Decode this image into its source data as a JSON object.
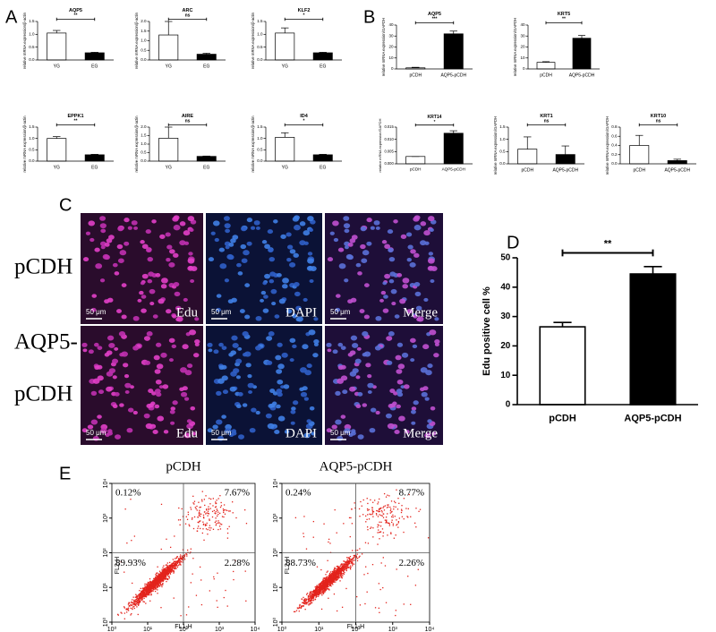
{
  "panel_labels": [
    "A",
    "B",
    "C",
    "D",
    "E"
  ],
  "chart_data": [
    {
      "type": "bar",
      "title": "AQP5",
      "ylabel": "relative mRNA expression/β-actin",
      "categories": [
        "YG",
        "EG"
      ],
      "values": [
        1.05,
        0.28
      ],
      "errors": [
        0.1,
        0.02
      ],
      "significance": "**",
      "colors": [
        "#ffffff",
        "#000000"
      ],
      "ylim": [
        0,
        1.5
      ],
      "yticks": [
        {
          "value": 0,
          "label": "0.0"
        },
        0.5,
        {
          "value": 1,
          "label": "1.0"
        },
        1.5
      ]
    },
    {
      "type": "bar",
      "title": "ARC",
      "ylabel": "relative mRNA expression/β-actin",
      "categories": [
        "YG",
        "EG"
      ],
      "values": [
        1.3,
        0.3
      ],
      "errors": [
        0.7,
        0.05
      ],
      "significance": "ns",
      "colors": [
        "#ffffff",
        "#000000"
      ],
      "ylim": [
        0,
        2
      ],
      "yticks": [
        {
          "value": 0,
          "label": "0.0"
        },
        0.5,
        {
          "value": 1,
          "label": "1.0"
        },
        1.5,
        {
          "value": 2,
          "label": "2.0"
        }
      ]
    },
    {
      "type": "bar",
      "title": "KLF2",
      "ylabel": "relative mRNA expression/β-actin",
      "categories": [
        "YG",
        "EG"
      ],
      "values": [
        1.05,
        0.28
      ],
      "errors": [
        0.2,
        0.02
      ],
      "significance": "*",
      "colors": [
        "#ffffff",
        "#000000"
      ],
      "ylim": [
        0,
        1.5
      ],
      "yticks": [
        {
          "value": 0,
          "label": "0.0"
        },
        0.5,
        {
          "value": 1,
          "label": "1.0"
        },
        1.5
      ]
    },
    {
      "type": "bar",
      "title": "EPPK1",
      "ylabel": "relative mRNA expression/β-actin",
      "categories": [
        "YG",
        "EG"
      ],
      "values": [
        1.0,
        0.28
      ],
      "errors": [
        0.08,
        0.02
      ],
      "significance": "**",
      "colors": [
        "#ffffff",
        "#000000"
      ],
      "ylim": [
        0,
        1.5
      ],
      "yticks": [
        {
          "value": 0,
          "label": "0.0"
        },
        0.5,
        {
          "value": 1,
          "label": "1.0"
        },
        1.5
      ]
    },
    {
      "type": "bar",
      "title": "AIRE",
      "ylabel": "relative mRNA expression/β-actin",
      "categories": [
        "YG",
        "EG"
      ],
      "values": [
        1.35,
        0.28
      ],
      "errors": [
        0.65,
        0.02
      ],
      "significance": "ns",
      "colors": [
        "#ffffff",
        "#000000"
      ],
      "ylim": [
        0,
        2
      ],
      "yticks": [
        {
          "value": 0,
          "label": "0.0"
        },
        0.5,
        {
          "value": 1,
          "label": "1.0"
        },
        1.5,
        {
          "value": 2,
          "label": "2.0"
        }
      ]
    },
    {
      "type": "bar",
      "title": "ID4",
      "ylabel": "relative mRNA expression/β-actin",
      "categories": [
        "YG",
        "EG"
      ],
      "values": [
        1.05,
        0.28
      ],
      "errors": [
        0.2,
        0.02
      ],
      "significance": "*",
      "colors": [
        "#ffffff",
        "#000000"
      ],
      "ylim": [
        0,
        1.5
      ],
      "yticks": [
        {
          "value": 0,
          "label": "0.0"
        },
        0.5,
        {
          "value": 1,
          "label": "1.0"
        },
        1.5
      ]
    },
    {
      "type": "bar",
      "title": "AQP5",
      "ylabel": "relative mRNA expression/GAPDH",
      "categories": [
        "pCDH",
        "AQP5-pCDH"
      ],
      "values": [
        1,
        32
      ],
      "errors": [
        0.5,
        2.5
      ],
      "significance": "***",
      "colors": [
        "#ffffff",
        "#000000"
      ],
      "ylim": [
        0,
        40
      ],
      "yticks": [
        0,
        10,
        20,
        30,
        40
      ]
    },
    {
      "type": "bar",
      "title": "KRT5",
      "ylabel": "relative mRNA expression/GAPDH",
      "categories": [
        "pCDH",
        "AQP5-pCDH"
      ],
      "values": [
        6,
        28
      ],
      "errors": [
        0.6,
        2.5
      ],
      "significance": "**",
      "colors": [
        "#ffffff",
        "#000000"
      ],
      "ylim": [
        0,
        40
      ],
      "yticks": [
        0,
        10,
        20,
        30,
        40
      ]
    },
    {
      "type": "bar",
      "title": "KRT14",
      "ylabel": "relative mRNA expression/GAPDH",
      "categories": [
        "pCDH",
        "AQP5-pCDH"
      ],
      "values": [
        0.003,
        0.0125
      ],
      "errors": [
        0,
        0.001
      ],
      "significance": "*",
      "colors": [
        "#ffffff",
        "#000000"
      ],
      "ylim": [
        0,
        0.015
      ],
      "yticks": [
        {
          "value": 0,
          "label": "0.000"
        },
        0.005,
        {
          "value": 0.01,
          "label": "0.010"
        },
        0.015
      ]
    },
    {
      "type": "bar",
      "title": "KRT1",
      "ylabel": "relative mRNA expression/GAPDH",
      "categories": [
        "pCDH",
        "AQP5-pCDH"
      ],
      "values": [
        0.6,
        0.38
      ],
      "errors": [
        0.5,
        0.35
      ],
      "significance": "ns",
      "colors": [
        "#ffffff",
        "#000000"
      ],
      "ylim": [
        0,
        1.5
      ],
      "yticks": [
        {
          "value": 0,
          "label": "0.0"
        },
        0.5,
        {
          "value": 1,
          "label": "1.0"
        },
        1.5
      ]
    },
    {
      "type": "bar",
      "title": "KRT10",
      "ylabel": "relative mRNA expression/GAPDH",
      "categories": [
        "pCDH",
        "AQP5-pCDH"
      ],
      "values": [
        0.4,
        0.07
      ],
      "errors": [
        0.22,
        0.03
      ],
      "significance": "ns",
      "colors": [
        "#ffffff",
        "#000000"
      ],
      "ylim": [
        0,
        0.8
      ],
      "yticks": [
        {
          "value": 0,
          "label": "0.0"
        },
        0.2,
        0.4,
        0.6,
        0.8
      ]
    },
    {
      "type": "bar",
      "ylabel": "Edu positive cell %",
      "categories": [
        "pCDH",
        "AQP5-pCDH"
      ],
      "values": [
        26.5,
        44.5
      ],
      "errors": [
        1.5,
        2.5
      ],
      "significance": "**",
      "colors": [
        "#ffffff",
        "#000000"
      ],
      "ylim": [
        0,
        50
      ],
      "yticks": [
        0,
        10,
        20,
        30,
        40,
        50
      ]
    }
  ],
  "microscopy": {
    "rows": [
      {
        "label_lines": [
          "pCDH"
        ]
      },
      {
        "label_lines": [
          "AQP5-",
          "pCDH"
        ]
      }
    ],
    "channels": [
      "Edu",
      "DAPI",
      "Merge"
    ],
    "scale_bar": "50 μm"
  },
  "flow": {
    "plots": [
      {
        "title": "pCDH",
        "quadrants": [
          "0.12%",
          "7.67%",
          "89.93%",
          "2.28%"
        ]
      },
      {
        "title": "AQP5-pCDH",
        "quadrants": [
          "0.24%",
          "8.77%",
          "88.73%",
          "2.26%"
        ]
      }
    ],
    "xlabel": "FL1-H",
    "ylabel": "FL2-H",
    "log": true,
    "color": "#e3231c",
    "xlim": [
      1,
      10000
    ],
    "ylim": [
      1,
      10000
    ],
    "xticks": [
      {
        "value": 1,
        "label": "10⁰"
      },
      {
        "value": 10,
        "label": "10¹"
      },
      {
        "value": 100,
        "label": "10²"
      },
      {
        "value": 1000,
        "label": "10³"
      },
      {
        "value": 10000,
        "label": "10⁴"
      }
    ],
    "yticks": [
      {
        "value": 1,
        "label": "10⁰"
      },
      {
        "value": 10,
        "label": "10¹"
      },
      {
        "value": 100,
        "label": "10²"
      },
      {
        "value": 1000,
        "label": "10³"
      },
      {
        "value": 10000,
        "label": "10⁴"
      }
    ]
  }
}
